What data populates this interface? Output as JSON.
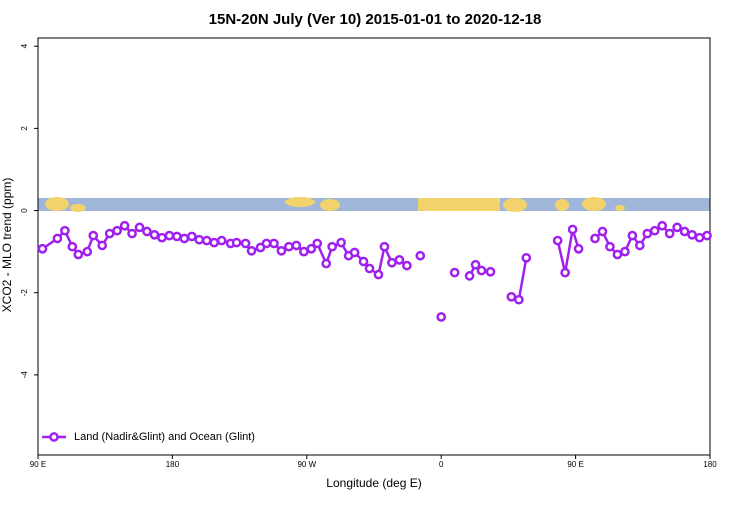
{
  "chart_data": {
    "type": "line",
    "title": "15N-20N July (Ver 10)   2015-01-01 to 2020-12-18",
    "xlabel": "Longitude (deg E)",
    "ylabel": "XCO2 - MLO trend (ppm)",
    "xlim": [
      -270,
      180
    ],
    "ylim": [
      -5.95,
      4.2
    ],
    "xticks": [
      {
        "value": -270,
        "label": "90 E"
      },
      {
        "value": -180,
        "label": "180"
      },
      {
        "value": -90,
        "label": "90 W"
      },
      0,
      {
        "value": 90,
        "label": "90 E"
      },
      180
    ],
    "yticks": [
      -4,
      -2,
      0,
      2,
      4
    ],
    "legend": "bottom-left",
    "x": [
      -267,
      -257,
      -252,
      -247,
      -243,
      -237,
      -233,
      -227,
      -222,
      -217,
      -212,
      -207,
      -202,
      -197,
      -192,
      -187,
      -182,
      -177,
      -172,
      -167,
      -162,
      -157,
      -152,
      -147,
      -141,
      -137,
      -131,
      -127,
      -121,
      -117,
      -112,
      -107,
      -102,
      -97,
      -92,
      -87,
      -83,
      -77,
      -73,
      -67,
      -62,
      -58,
      -52,
      -48,
      -42,
      -38,
      -33,
      -28,
      -23,
      -18,
      -14,
      -6,
      0,
      4,
      9,
      13,
      19,
      23,
      27,
      33,
      40,
      47,
      52,
      57,
      67,
      78,
      83,
      88,
      92,
      98,
      103,
      108,
      113,
      118,
      123,
      128,
      133,
      138,
      143,
      148,
      153,
      158,
      163,
      168,
      173,
      178
    ],
    "series": [
      {
        "name": "Land (Nadir&Glint) and Ocean (Glint)",
        "color": "#a020f0",
        "values": [
          -0.93,
          -0.68,
          -0.49,
          -0.88,
          -1.07,
          -1.0,
          -0.61,
          -0.85,
          -0.56,
          -0.49,
          -0.37,
          -0.56,
          -0.41,
          -0.51,
          -0.59,
          -0.66,
          -0.61,
          -0.63,
          -0.68,
          -0.63,
          -0.71,
          -0.73,
          -0.78,
          -0.73,
          -0.8,
          -0.78,
          -0.8,
          -0.98,
          -0.9,
          -0.8,
          -0.8,
          -0.98,
          -0.88,
          -0.85,
          -1.0,
          -0.93,
          -0.8,
          -1.29,
          -0.88,
          -0.78,
          -1.1,
          -1.02,
          -1.24,
          -1.41,
          -1.56,
          -0.88,
          -1.27,
          -1.2,
          -1.34,
          null,
          -1.1,
          null,
          -2.59,
          null,
          -1.51,
          null,
          -1.59,
          -1.32,
          -1.46,
          -1.49,
          null,
          -2.1,
          -2.17,
          -1.15,
          null,
          -0.73,
          -1.51,
          -0.46,
          -0.93,
          null,
          -0.68,
          -0.51,
          -0.88,
          -1.07,
          -1.0,
          -0.61,
          -0.85,
          -0.56,
          -0.49,
          -0.37,
          -0.56,
          -0.41,
          -0.51,
          -0.59,
          -0.66,
          -0.61
        ]
      }
    ]
  }
}
